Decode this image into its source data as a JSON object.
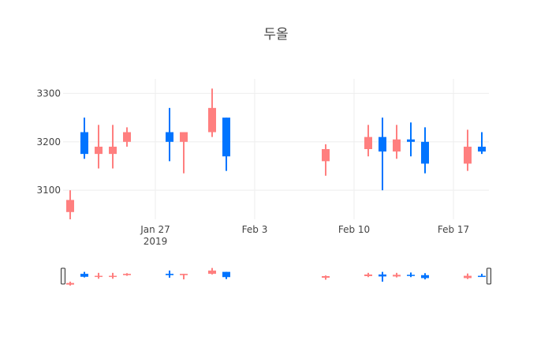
{
  "chart_data": {
    "type": "candlestick",
    "title": "두올",
    "x_ticks": [
      {
        "date": "2019-01-27",
        "label": "Jan 27",
        "sublabel": "2019"
      },
      {
        "date": "2019-02-03",
        "label": "Feb 3",
        "sublabel": ""
      },
      {
        "date": "2019-02-10",
        "label": "Feb 10",
        "sublabel": ""
      },
      {
        "date": "2019-02-17",
        "label": "Feb 17",
        "sublabel": ""
      }
    ],
    "y_ticks": [
      3100,
      3200,
      3300
    ],
    "xlim": [
      "2019-01-21",
      "2019-02-19"
    ],
    "ylim": [
      3040,
      3330
    ],
    "grid": true,
    "rangeslider": true,
    "colors": {
      "increasing": "#0074ff",
      "decreasing": "#ff7f7f",
      "grid": "#eeeeee",
      "text": "#444444"
    },
    "candles": [
      {
        "date": "2019-01-21",
        "open": 3080,
        "high": 3100,
        "low": 3040,
        "close": 3055
      },
      {
        "date": "2019-01-22",
        "open": 3175,
        "high": 3250,
        "low": 3165,
        "close": 3220
      },
      {
        "date": "2019-01-23",
        "open": 3190,
        "high": 3235,
        "low": 3145,
        "close": 3175
      },
      {
        "date": "2019-01-24",
        "open": 3190,
        "high": 3235,
        "low": 3145,
        "close": 3175
      },
      {
        "date": "2019-01-25",
        "open": 3220,
        "high": 3230,
        "low": 3190,
        "close": 3200
      },
      {
        "date": "2019-01-28",
        "open": 3200,
        "high": 3270,
        "low": 3160,
        "close": 3220
      },
      {
        "date": "2019-01-29",
        "open": 3220,
        "high": 3220,
        "low": 3135,
        "close": 3200
      },
      {
        "date": "2019-01-31",
        "open": 3270,
        "high": 3310,
        "low": 3210,
        "close": 3220
      },
      {
        "date": "2019-02-01",
        "open": 3170,
        "high": 3250,
        "low": 3140,
        "close": 3250
      },
      {
        "date": "2019-02-08",
        "open": 3185,
        "high": 3195,
        "low": 3130,
        "close": 3160
      },
      {
        "date": "2019-02-11",
        "open": 3210,
        "high": 3235,
        "low": 3170,
        "close": 3185
      },
      {
        "date": "2019-02-12",
        "open": 3180,
        "high": 3250,
        "low": 3100,
        "close": 3210
      },
      {
        "date": "2019-02-13",
        "open": 3205,
        "high": 3235,
        "low": 3165,
        "close": 3180
      },
      {
        "date": "2019-02-14",
        "open": 3200,
        "high": 3240,
        "low": 3170,
        "close": 3205
      },
      {
        "date": "2019-02-15",
        "open": 3155,
        "high": 3230,
        "low": 3135,
        "close": 3200
      },
      {
        "date": "2019-02-18",
        "open": 3190,
        "high": 3225,
        "low": 3140,
        "close": 3155
      },
      {
        "date": "2019-02-19",
        "open": 3180,
        "high": 3220,
        "low": 3175,
        "close": 3190
      }
    ]
  }
}
